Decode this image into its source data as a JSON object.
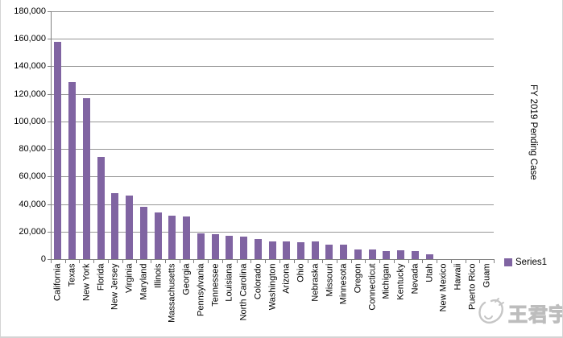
{
  "chart": {
    "colors": {
      "bar": "#8064A2",
      "gridline": "#969696",
      "axis": "#808080",
      "label_text": "#000000",
      "border": "#d4d4d4",
      "watermark": "#bfbfbf"
    }
  },
  "watermark": {
    "text": "王君宇",
    "logo": "sketch-circle-logo"
  },
  "chart_data": {
    "type": "bar",
    "title": "FY 2019 Pending Case",
    "title_position": "right-vertical",
    "legend": [
      "Series1"
    ],
    "legend_position": "bottom-right",
    "grid": true,
    "ylim": [
      0,
      180000
    ],
    "ytick_step": 20000,
    "ytick_labels": [
      "0",
      "20,000",
      "40,000",
      "60,000",
      "80,000",
      "100,000",
      "120,000",
      "140,000",
      "160,000",
      "180,000"
    ],
    "categories": [
      "California",
      "Texas",
      "New York",
      "Florida",
      "New Jersey",
      "Virginia",
      "Maryland",
      "Illinois",
      "Massachusetts",
      "Georgia",
      "Pennsylvania",
      "Tennessee",
      "Louisiana",
      "North Carolina",
      "Colorado",
      "Washington",
      "Arizona",
      "Ohio",
      "Nebraska",
      "Missouri",
      "Minnesota",
      "Oregon",
      "Connecticut",
      "Michigan",
      "Kentucky",
      "Nevada",
      "Utah",
      "New Mexico",
      "Hawaii",
      "Puerto Rico",
      "Guam"
    ],
    "values": [
      158000,
      128500,
      117000,
      74000,
      48000,
      46000,
      38000,
      34000,
      31500,
      31000,
      18500,
      18000,
      17000,
      16500,
      14500,
      13000,
      12800,
      12400,
      12800,
      10400,
      10600,
      7000,
      7000,
      6100,
      6400,
      6100,
      3700,
      0,
      0,
      0,
      0
    ]
  }
}
